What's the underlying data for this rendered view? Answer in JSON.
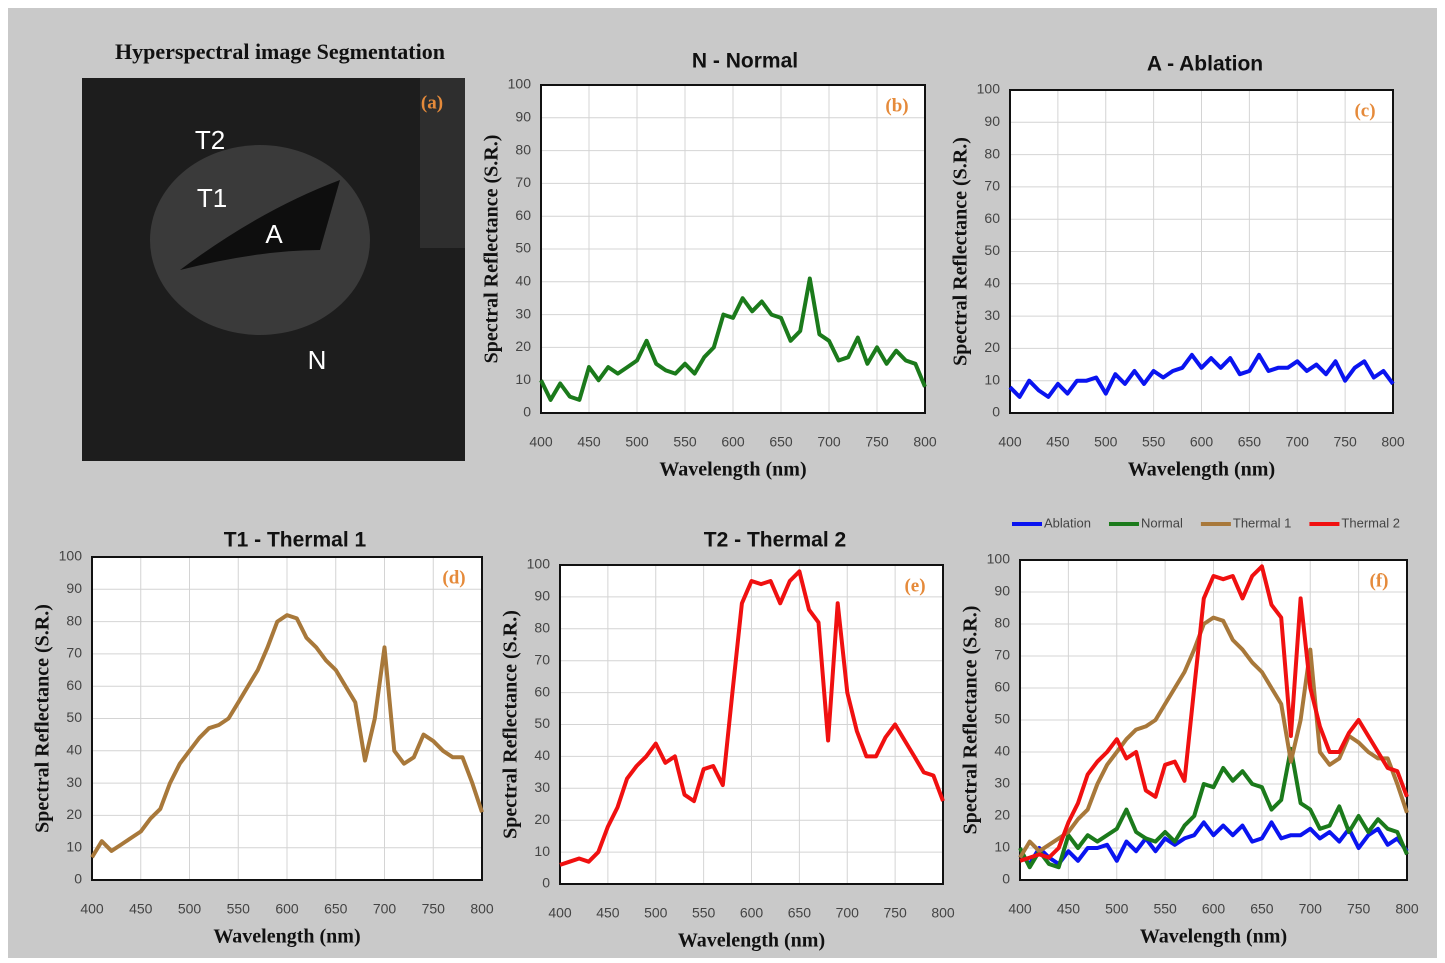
{
  "image_panel": {
    "title": "Hyperspectral image Segmentation",
    "tag": "(a)",
    "labels": [
      {
        "text": "T2"
      },
      {
        "text": "T1"
      },
      {
        "text": "A"
      },
      {
        "text": "N"
      }
    ]
  },
  "chart_data": [
    {
      "type": "line",
      "title": "N - Normal",
      "tag": "(b)",
      "xlabel": "Wavelength (nm)",
      "ylabel": "Spectral Reflectance (S.R.)",
      "x": [
        400,
        410,
        420,
        430,
        440,
        450,
        460,
        470,
        480,
        490,
        500,
        510,
        520,
        530,
        540,
        550,
        560,
        570,
        580,
        590,
        600,
        610,
        620,
        630,
        640,
        650,
        660,
        670,
        680,
        690,
        700,
        710,
        720,
        730,
        740,
        750,
        760,
        770,
        780,
        790,
        800
      ],
      "series": [
        {
          "name": "Normal",
          "color": "#1b7a1b",
          "values": [
            10,
            4,
            9,
            5,
            4,
            14,
            10,
            14,
            12,
            14,
            16,
            22,
            15,
            13,
            12,
            15,
            12,
            17,
            20,
            30,
            29,
            35,
            31,
            34,
            30,
            29,
            22,
            25,
            41,
            24,
            22,
            16,
            17,
            23,
            15,
            20,
            15,
            19,
            16,
            15,
            8
          ]
        }
      ],
      "xlim": [
        400,
        800
      ],
      "ylim": [
        0,
        100
      ],
      "xticks": [
        400,
        450,
        500,
        550,
        600,
        650,
        700,
        750,
        800
      ],
      "yticks": [
        0,
        10,
        20,
        30,
        40,
        50,
        60,
        70,
        80,
        90,
        100
      ],
      "grid": true
    },
    {
      "type": "line",
      "title": "A - Ablation",
      "tag": "(c)",
      "xlabel": "Wavelength (nm)",
      "ylabel": "Spectral Reflectance (S.R.)",
      "x": [
        400,
        410,
        420,
        430,
        440,
        450,
        460,
        470,
        480,
        490,
        500,
        510,
        520,
        530,
        540,
        550,
        560,
        570,
        580,
        590,
        600,
        610,
        620,
        630,
        640,
        650,
        660,
        670,
        680,
        690,
        700,
        710,
        720,
        730,
        740,
        750,
        760,
        770,
        780,
        790,
        800
      ],
      "series": [
        {
          "name": "Ablation",
          "color": "#0a14f0",
          "values": [
            8,
            5,
            10,
            7,
            5,
            9,
            6,
            10,
            10,
            11,
            6,
            12,
            9,
            13,
            9,
            13,
            11,
            13,
            14,
            18,
            14,
            17,
            14,
            17,
            12,
            13,
            18,
            13,
            14,
            14,
            16,
            13,
            15,
            12,
            16,
            10,
            14,
            16,
            11,
            13,
            9
          ]
        }
      ],
      "xlim": [
        400,
        800
      ],
      "ylim": [
        0,
        100
      ],
      "xticks": [
        400,
        450,
        500,
        550,
        600,
        650,
        700,
        750,
        800
      ],
      "yticks": [
        0,
        10,
        20,
        30,
        40,
        50,
        60,
        70,
        80,
        90,
        100
      ],
      "grid": true
    },
    {
      "type": "line",
      "title": "T1 - Thermal 1",
      "tag": "(d)",
      "xlabel": "Wavelength (nm)",
      "ylabel": "Spectral Reflectance (S.R.)",
      "x": [
        400,
        410,
        420,
        430,
        440,
        450,
        460,
        470,
        480,
        490,
        500,
        510,
        520,
        530,
        540,
        550,
        560,
        570,
        580,
        590,
        600,
        610,
        620,
        630,
        640,
        650,
        660,
        670,
        680,
        690,
        700,
        710,
        720,
        730,
        740,
        750,
        760,
        770,
        780,
        790,
        800
      ],
      "series": [
        {
          "name": "Thermal 1",
          "color": "#a8783a",
          "values": [
            7,
            12,
            9,
            11,
            13,
            15,
            19,
            22,
            30,
            36,
            40,
            44,
            47,
            48,
            50,
            55,
            60,
            65,
            72,
            80,
            82,
            81,
            75,
            72,
            68,
            65,
            60,
            55,
            37,
            50,
            72,
            40,
            36,
            38,
            45,
            43,
            40,
            38,
            38,
            30,
            21
          ]
        }
      ],
      "xlim": [
        400,
        800
      ],
      "ylim": [
        0,
        100
      ],
      "xticks": [
        400,
        450,
        500,
        550,
        600,
        650,
        700,
        750,
        800
      ],
      "yticks": [
        0,
        10,
        20,
        30,
        40,
        50,
        60,
        70,
        80,
        90,
        100
      ],
      "grid": true
    },
    {
      "type": "line",
      "title": "T2 - Thermal 2",
      "tag": "(e)",
      "xlabel": "Wavelength (nm)",
      "ylabel": "Spectral Reflectance (S.R.)",
      "x": [
        400,
        410,
        420,
        430,
        440,
        450,
        460,
        470,
        480,
        490,
        500,
        510,
        520,
        530,
        540,
        550,
        560,
        570,
        580,
        590,
        600,
        610,
        620,
        630,
        640,
        650,
        660,
        670,
        680,
        690,
        700,
        710,
        720,
        730,
        740,
        750,
        760,
        770,
        780,
        790,
        800
      ],
      "series": [
        {
          "name": "Thermal 2",
          "color": "#f01010",
          "values": [
            6,
            7,
            8,
            7,
            10,
            18,
            24,
            33,
            37,
            40,
            44,
            38,
            40,
            28,
            26,
            36,
            37,
            31,
            60,
            88,
            95,
            94,
            95,
            88,
            95,
            98,
            86,
            82,
            45,
            88,
            60,
            48,
            40,
            40,
            46,
            50,
            45,
            40,
            35,
            34,
            26
          ]
        }
      ],
      "xlim": [
        400,
        800
      ],
      "ylim": [
        0,
        100
      ],
      "xticks": [
        400,
        450,
        500,
        550,
        600,
        650,
        700,
        750,
        800
      ],
      "yticks": [
        0,
        10,
        20,
        30,
        40,
        50,
        60,
        70,
        80,
        90,
        100
      ],
      "grid": true
    },
    {
      "type": "line",
      "tag": "(f)",
      "xlabel": "Wavelength (nm)",
      "ylabel": "Spectral Reflectance (S.R.)",
      "legend": "top",
      "x": [
        400,
        410,
        420,
        430,
        440,
        450,
        460,
        470,
        480,
        490,
        500,
        510,
        520,
        530,
        540,
        550,
        560,
        570,
        580,
        590,
        600,
        610,
        620,
        630,
        640,
        650,
        660,
        670,
        680,
        690,
        700,
        710,
        720,
        730,
        740,
        750,
        760,
        770,
        780,
        790,
        800
      ],
      "series": [
        {
          "name": "Ablation",
          "color": "#0a14f0",
          "values": [
            8,
            5,
            10,
            7,
            5,
            9,
            6,
            10,
            10,
            11,
            6,
            12,
            9,
            13,
            9,
            13,
            11,
            13,
            14,
            18,
            14,
            17,
            14,
            17,
            12,
            13,
            18,
            13,
            14,
            14,
            16,
            13,
            15,
            12,
            16,
            10,
            14,
            16,
            11,
            13,
            9
          ]
        },
        {
          "name": "Normal",
          "color": "#1b7a1b",
          "values": [
            10,
            4,
            9,
            5,
            4,
            14,
            10,
            14,
            12,
            14,
            16,
            22,
            15,
            13,
            12,
            15,
            12,
            17,
            20,
            30,
            29,
            35,
            31,
            34,
            30,
            29,
            22,
            25,
            41,
            24,
            22,
            16,
            17,
            23,
            15,
            20,
            15,
            19,
            16,
            15,
            8
          ]
        },
        {
          "name": "Thermal 1",
          "color": "#a8783a",
          "values": [
            7,
            12,
            9,
            11,
            13,
            15,
            19,
            22,
            30,
            36,
            40,
            44,
            47,
            48,
            50,
            55,
            60,
            65,
            72,
            80,
            82,
            81,
            75,
            72,
            68,
            65,
            60,
            55,
            37,
            50,
            72,
            40,
            36,
            38,
            45,
            43,
            40,
            38,
            38,
            30,
            21
          ]
        },
        {
          "name": "Thermal 2",
          "color": "#f01010",
          "values": [
            6,
            7,
            8,
            7,
            10,
            18,
            24,
            33,
            37,
            40,
            44,
            38,
            40,
            28,
            26,
            36,
            37,
            31,
            60,
            88,
            95,
            94,
            95,
            88,
            95,
            98,
            86,
            82,
            45,
            88,
            60,
            48,
            40,
            40,
            46,
            50,
            45,
            40,
            35,
            34,
            26
          ]
        }
      ],
      "xlim": [
        400,
        800
      ],
      "ylim": [
        0,
        100
      ],
      "xticks": [
        400,
        450,
        500,
        550,
        600,
        650,
        700,
        750,
        800
      ],
      "yticks": [
        0,
        10,
        20,
        30,
        40,
        50,
        60,
        70,
        80,
        90,
        100
      ],
      "grid": true
    }
  ]
}
